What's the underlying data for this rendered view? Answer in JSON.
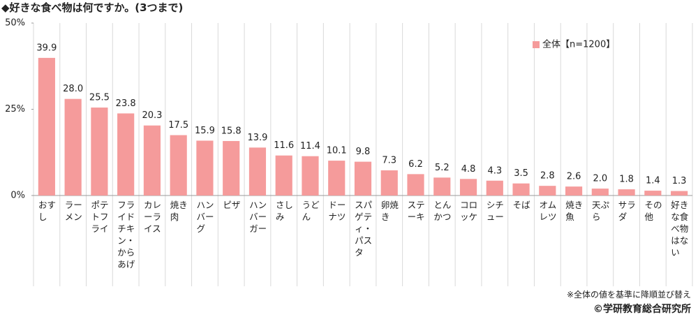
{
  "chart_data": {
    "type": "bar",
    "title": "◆好きな食べ物は何ですか。(3つまで)",
    "categories": [
      "おすし",
      "ラーメン",
      "ポテトフライ",
      "フライドチキン・からあげ",
      "カレーライス",
      "焼き肉",
      "ハンバーグ",
      "ピザ",
      "ハンバーガー",
      "さしみ",
      "うどん",
      "ドーナツ",
      "スパゲティ・パスタ",
      "卵焼き",
      "ステーキ",
      "とんかつ",
      "コロッケ",
      "シチュー",
      "そば",
      "オムレツ",
      "焼き魚",
      "天ぷら",
      "サラダ",
      "その他",
      "好きな食べ物はない"
    ],
    "series": [
      {
        "name": "全体【n=1200】",
        "color": "#f59b9b",
        "values": [
          39.9,
          28.0,
          25.5,
          23.8,
          20.3,
          17.5,
          15.9,
          15.8,
          13.9,
          11.6,
          11.4,
          10.1,
          9.8,
          7.3,
          6.2,
          5.2,
          4.8,
          4.3,
          3.5,
          2.8,
          2.6,
          2.0,
          1.8,
          1.4,
          1.3
        ],
        "value_labels": [
          "39.9",
          "28.0",
          "25.5",
          "23.8",
          "20.3",
          "17.5",
          "15.9",
          "15.8",
          "13.9",
          "11.6",
          "11.4",
          "10.1",
          "9.8",
          "7.3",
          "6.2",
          "5.2",
          "4.8",
          "4.3",
          "3.5",
          "2.8",
          "2.6",
          "2.0",
          "1.8",
          "1.4",
          "1.3"
        ]
      }
    ],
    "ylim": [
      0,
      50
    ],
    "yticks": [
      {
        "value": 0,
        "label": "0%"
      },
      {
        "value": 25,
        "label": "25%"
      },
      {
        "value": 50,
        "label": "50%"
      }
    ],
    "legend": "upper right",
    "notes": [
      "※全体の値を基準に降順並び替え",
      "©学研教育総合研究所"
    ]
  }
}
